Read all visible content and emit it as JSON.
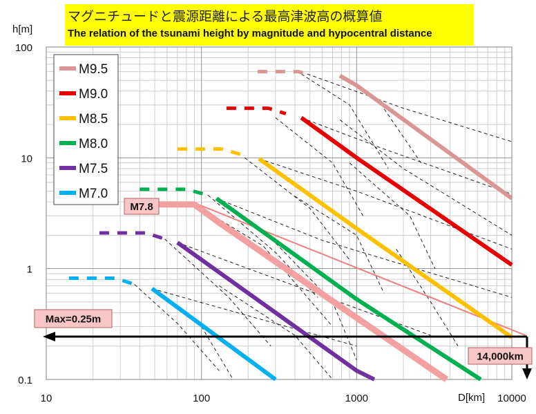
{
  "chart_data": {
    "type": "line",
    "title": "マグニチュードと震源距離による最高津波高の概算値",
    "subtitle": "The relation of the tsunami height by magnitude and hypocentral distance",
    "xlabel": "D[km]",
    "ylabel": "h[m]",
    "xscale": "log",
    "yscale": "log",
    "xlim": [
      10,
      10000
    ],
    "ylim": [
      0.1,
      100
    ],
    "xticks": [
      "10",
      "100",
      "1000",
      "10000"
    ],
    "yticks": [
      "0.1",
      "1",
      "10",
      "100"
    ],
    "grid": true,
    "legend_position": "top-left",
    "series": [
      {
        "name": "M9.5",
        "color": "#d99694",
        "dashed_points": [
          [
            230,
            60
          ],
          [
            420,
            60
          ],
          [
            480,
            57
          ]
        ],
        "solid_points": [
          [
            780,
            55
          ],
          [
            1000,
            45
          ],
          [
            10000,
            4.3
          ]
        ]
      },
      {
        "name": "M9.0",
        "color": "#e60000",
        "dashed_points": [
          [
            145,
            28
          ],
          [
            270,
            28
          ],
          [
            350,
            25
          ]
        ],
        "solid_points": [
          [
            440,
            23
          ],
          [
            1000,
            10
          ],
          [
            10000,
            1.08
          ]
        ]
      },
      {
        "name": "M8.5",
        "color": "#ffc000",
        "dashed_points": [
          [
            70,
            12
          ],
          [
            135,
            12
          ],
          [
            190,
            10.5
          ]
        ],
        "solid_points": [
          [
            235,
            9.8
          ],
          [
            1000,
            2.3
          ],
          [
            10000,
            0.24
          ]
        ]
      },
      {
        "name": "M8.0",
        "color": "#00b050",
        "dashed_points": [
          [
            40,
            5.2
          ],
          [
            80,
            5.2
          ],
          [
            110,
            4.6
          ]
        ],
        "solid_points": [
          [
            125,
            4.3
          ],
          [
            1000,
            0.53
          ],
          [
            6300,
            0.1
          ]
        ]
      },
      {
        "name": "M7.5",
        "color": "#7030a0",
        "dashed_points": [
          [
            22,
            2.1
          ],
          [
            44,
            2.1
          ],
          [
            58,
            1.85
          ]
        ],
        "solid_points": [
          [
            70,
            1.72
          ],
          [
            1000,
            0.12
          ],
          [
            1300,
            0.1
          ]
        ]
      },
      {
        "name": "M7.0",
        "color": "#00b0f0",
        "dashed_points": [
          [
            14,
            0.82
          ],
          [
            28,
            0.82
          ],
          [
            37,
            0.72
          ]
        ],
        "solid_points": [
          [
            48,
            0.66
          ],
          [
            300,
            0.1
          ]
        ]
      }
    ],
    "highlight_series": {
      "name": "M7.8",
      "color": "#f4a0a0",
      "points": [
        [
          33,
          3.8
        ],
        [
          90,
          3.8
        ],
        [
          130,
          2.6
        ],
        [
          1000,
          0.36
        ],
        [
          3800,
          0.1
        ]
      ]
    },
    "annotations": {
      "m78_label": "M7.8",
      "max_label": "Max=0.25m",
      "distance_label": "14,000km",
      "max_height": 0.25,
      "max_distance": 14000
    }
  }
}
